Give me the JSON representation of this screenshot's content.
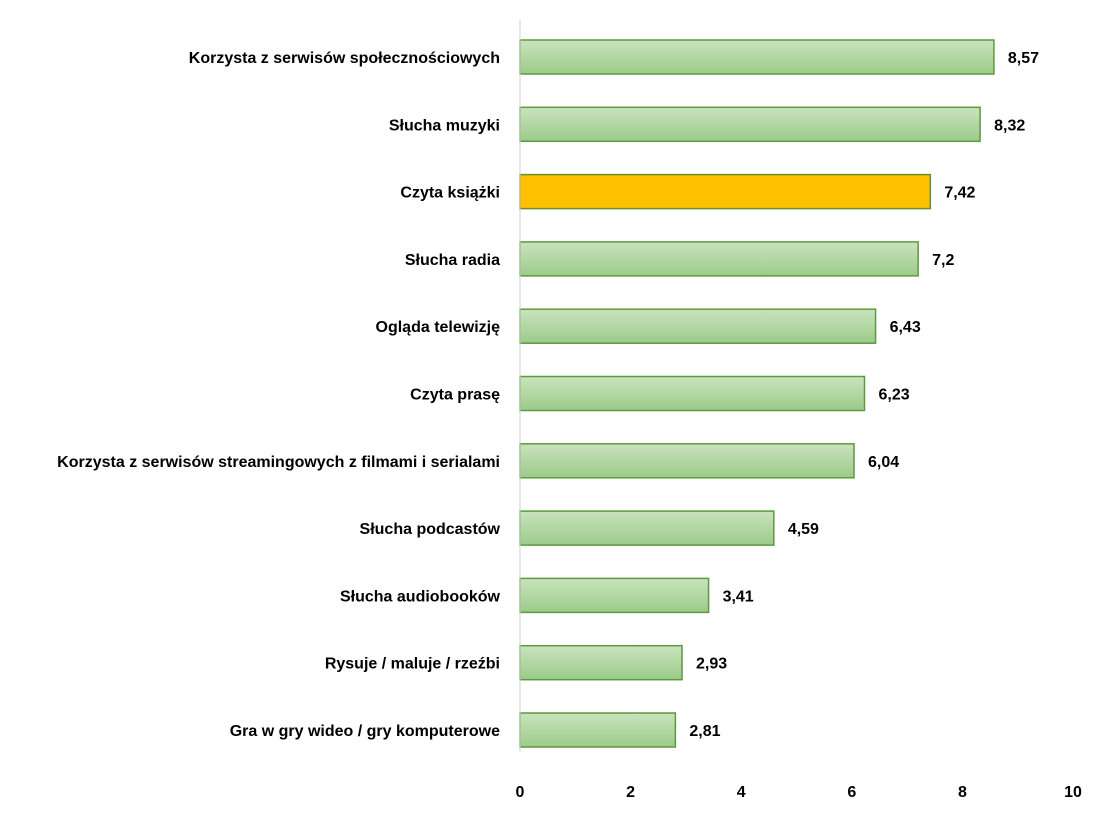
{
  "chart_data": {
    "type": "bar",
    "orientation": "horizontal",
    "title": "",
    "xlabel": "",
    "ylabel": "",
    "categories": [
      "Korzysta z serwisów społecznościowych",
      "Słucha muzyki",
      "Czyta książki",
      "Słucha radia",
      "Ogląda telewizję",
      "Czyta prasę",
      "Korzysta z serwisów streamingowych z filmami i serialami",
      "Słucha podcastów",
      "Słucha audiobooków",
      "Rysuje / maluje / rzeźbi",
      "Gra w gry wideo / gry komputerowe"
    ],
    "values": [
      8.57,
      8.32,
      7.42,
      7.2,
      6.43,
      6.23,
      6.04,
      4.59,
      3.41,
      2.93,
      2.81
    ],
    "value_labels": [
      "8,57",
      "8,32",
      "7,42",
      "7,2",
      "6,43",
      "6,23",
      "6,04",
      "4,59",
      "3,41",
      "2,93",
      "2,81"
    ],
    "highlight_index": 2,
    "xlim": [
      0,
      10
    ],
    "xticks": [
      "0",
      "2",
      "4",
      "6",
      "8",
      "10"
    ],
    "grid": false,
    "legend": "none",
    "colors": {
      "bar_fill_top": "#c9e3bd",
      "bar_fill_bottom": "#9ccb8a",
      "bar_stroke": "#5d9a3c",
      "highlight_fill": "#ffc000",
      "highlight_stroke": "#6a8f2a",
      "axis": "#d0d0d0"
    }
  }
}
